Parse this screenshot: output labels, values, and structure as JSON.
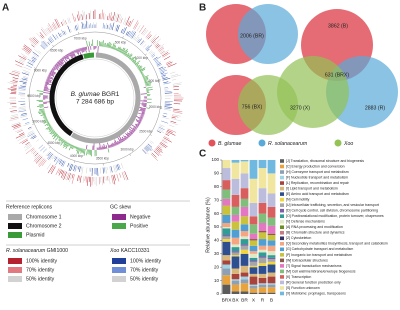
{
  "panel_labels": [
    "A",
    "B",
    "C"
  ],
  "genome_map": {
    "species": "B. glumae",
    "strain": "BGR1",
    "size": "7 284 686 bp",
    "scale_labels": [
      "500 kbp",
      "1000 kbp",
      "1500 kbp",
      "2000 kbp",
      "2500 kbp",
      "3000 kbp",
      "3500 kbp",
      "4000 kbp",
      "4500 kbp",
      "5000 kbp",
      "5500 kbp",
      "6000 kbp",
      "6500 kbp",
      "7000 kbp"
    ]
  },
  "legend_a": {
    "reference_title": "Reference replicons",
    "replicons": [
      {
        "label": "Chromosome 1",
        "color": "#a9a9a9"
      },
      {
        "label": "Chromosome 2",
        "color": "#111111"
      },
      {
        "label": "Plasmid",
        "color": "#3a9a3a"
      }
    ],
    "gc_title": "GC skew",
    "gc": [
      {
        "label": "Negative",
        "color": "#8e2a8e"
      },
      {
        "label": "Positive",
        "color": "#4aa84a"
      }
    ],
    "rs_species": "R. solanacearum",
    "rs_strain": "GMI1000",
    "rs": [
      {
        "label": "100% identity",
        "color": "#b3222e"
      },
      {
        "label": "70% identity",
        "color": "#e07a80"
      },
      {
        "label": "50% identity",
        "color": "#d2d2d2"
      }
    ],
    "xoo_species": "Xoo",
    "xoo_strain": "KACC10331",
    "xoo": [
      {
        "label": "100% identity",
        "color": "#1f3f99"
      },
      {
        "label": "70% identity",
        "color": "#6f8fd6"
      },
      {
        "label": "50% identity",
        "color": "#d2d2d2"
      }
    ]
  },
  "venn": {
    "pair_br": "2006 (BR)",
    "pair_bx": "756 (BX)",
    "b": "3862 (B)",
    "brx": "631 (BRX)",
    "x": "3270 (X)",
    "r": "2883 (R)",
    "legend": [
      {
        "label": "B. glumae",
        "color": "#e0525c"
      },
      {
        "label": "R. solanacearum",
        "color": "#5aa9d8"
      },
      {
        "label": "Xoo",
        "color": "#93c255"
      }
    ]
  },
  "chart_data": {
    "type": "stacked_bar",
    "ylabel": "Relative abundance (%)",
    "categories": [
      "BRX",
      "BX",
      "BR",
      "X",
      "R",
      "B"
    ],
    "ylim": [
      0,
      100
    ],
    "yticks": [
      0,
      10,
      20,
      30,
      40,
      50,
      60,
      70,
      80,
      90,
      100
    ],
    "series": [
      {
        "name": "[J] Translation, ribosomal structure and biogenesis",
        "color": "#5b5b5b",
        "values": [
          7,
          2,
          2,
          1,
          1,
          1
        ]
      },
      {
        "name": "[C] Energy production and conversion",
        "color": "#e8a33c",
        "values": [
          7,
          5,
          6,
          3,
          4,
          4
        ]
      },
      {
        "name": "[H] Coenzyme transport and metabolism",
        "color": "#8da0b6",
        "values": [
          5,
          3,
          3,
          2,
          2,
          2
        ]
      },
      {
        "name": "[F] Nucleotide transport and metabolism",
        "color": "#9fd3e6",
        "values": [
          3,
          1,
          2,
          1,
          1,
          1
        ]
      },
      {
        "name": "[L] Replication, recombination and repair",
        "color": "#a8433b",
        "values": [
          3,
          4,
          3,
          6,
          4,
          5
        ]
      },
      {
        "name": "[I] Lipid transport and metabolism",
        "color": "#d9b77a",
        "values": [
          4,
          4,
          5,
          2,
          3,
          3
        ]
      },
      {
        "name": "[E] Amino acid transport and metabolism",
        "color": "#2e4f8f",
        "values": [
          10,
          9,
          9,
          5,
          6,
          6
        ]
      },
      {
        "name": "[N] Cell motility",
        "color": "#f2d43b",
        "values": [
          2,
          1,
          3,
          1,
          2,
          2
        ]
      },
      {
        "name": "[U] Intracellular trafficking, secretion, and vesicular transport",
        "color": "#a6a6a6",
        "values": [
          2,
          2,
          3,
          3,
          4,
          2
        ]
      },
      {
        "name": "[D] Cell cycle control, cell division, chromosome partitioning",
        "color": "#7d5fa6",
        "values": [
          1,
          1,
          1,
          1,
          1,
          1
        ]
      },
      {
        "name": "[O] Posttranslational modification, protein turnover, chaperones",
        "color": "#2f9c95",
        "values": [
          5,
          3,
          4,
          2,
          3,
          2
        ]
      },
      {
        "name": "[V] Defense mechanisms",
        "color": "#dfe9c6",
        "values": [
          1,
          2,
          2,
          3,
          2,
          3
        ]
      },
      {
        "name": "[A] RNA processing and modification",
        "color": "#6b8e23",
        "values": [
          0,
          0,
          0,
          0,
          0,
          0
        ]
      },
      {
        "name": "[B] Chromatin structure and dynamics",
        "color": "#c97b84",
        "values": [
          0,
          0,
          0,
          0,
          0,
          0
        ]
      },
      {
        "name": "[Z] Cytoskeleton",
        "color": "#333366",
        "values": [
          0,
          0,
          0,
          0,
          0,
          0
        ]
      },
      {
        "name": "[Q] Secondary metabolites biosynthesis, transport and catabolism",
        "color": "#f4a582",
        "values": [
          3,
          5,
          4,
          2,
          3,
          4
        ]
      },
      {
        "name": "[G] Carbohydrate transport and metabolism",
        "color": "#4f9fd4",
        "values": [
          6,
          6,
          5,
          4,
          5,
          4
        ]
      },
      {
        "name": "[P] Inorganic ion transport and metabolism",
        "color": "#c9c23a",
        "values": [
          7,
          6,
          6,
          4,
          5,
          4
        ]
      },
      {
        "name": "[W] Extracellular structures",
        "color": "#8c564b",
        "values": [
          0,
          0,
          0,
          1,
          1,
          1
        ]
      },
      {
        "name": "[T] Signal transduction mechanisms",
        "color": "#e377c2",
        "values": [
          5,
          5,
          7,
          4,
          6,
          6
        ]
      },
      {
        "name": "[M] Cell wall/membrane/envelope biogenesis",
        "color": "#7fbf7b",
        "values": [
          7,
          6,
          6,
          7,
          7,
          6
        ]
      },
      {
        "name": "[K] Transcription",
        "color": "#d95f5f",
        "values": [
          7,
          9,
          8,
          6,
          8,
          8
        ]
      },
      {
        "name": "[R] General function prediction only",
        "color": "#bcbddc",
        "values": [
          9,
          12,
          11,
          10,
          11,
          10
        ]
      },
      {
        "name": "[S] Function unknown",
        "color": "#f0e6a0",
        "values": [
          6,
          12,
          9,
          18,
          15,
          15
        ]
      },
      {
        "name": "[X] Mobilome: prophages, transposons",
        "color": "#6fb8e0",
        "values": [
          0,
          2,
          1,
          14,
          6,
          10
        ]
      }
    ]
  }
}
